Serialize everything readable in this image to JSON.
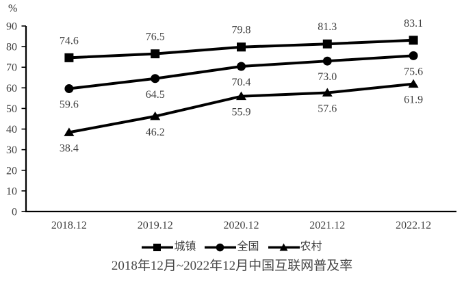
{
  "chart_data": {
    "type": "line",
    "title": "2018年12月~2022年12月中国互联网普及率",
    "y_unit_label": "%",
    "categories": [
      "2018.12",
      "2019.12",
      "2020.12",
      "2021.12",
      "2022.12"
    ],
    "series": [
      {
        "id": "urban",
        "name": "城镇",
        "marker": "square",
        "values": [
          74.6,
          76.5,
          79.8,
          81.3,
          83.1
        ],
        "label_side": "above"
      },
      {
        "id": "national",
        "name": "全国",
        "marker": "circle",
        "values": [
          59.6,
          64.5,
          70.4,
          73.0,
          75.6
        ],
        "label_side": "below"
      },
      {
        "id": "rural",
        "name": "农村",
        "marker": "triangle",
        "values": [
          38.4,
          46.2,
          55.9,
          57.6,
          61.9
        ],
        "label_side": "below"
      }
    ],
    "ylim": [
      0,
      90
    ],
    "yticks": [
      0,
      10,
      20,
      30,
      40,
      50,
      60,
      70,
      80,
      90
    ],
    "grid": false,
    "legend_position": "bottom",
    "line_color": "#000000",
    "text_color": "#3f3f3f"
  }
}
